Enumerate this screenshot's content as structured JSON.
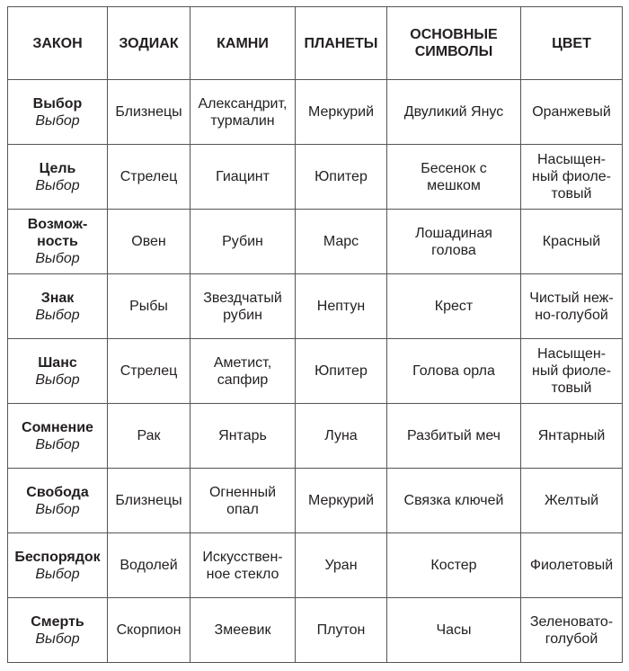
{
  "headers": [
    "ЗАКОН",
    "ЗОДИАК",
    "КАМНИ",
    "ПЛАНЕТЫ",
    "ОСНОВНЫЕ\nСИМВОЛЫ",
    "ЦВЕТ"
  ],
  "rows": [
    {
      "law": "Выбор",
      "sub": "Выбор",
      "cells": [
        "Близнецы",
        "Александрит,\nтурмалин",
        "Меркурий",
        "Двуликий Янус",
        "Оранжевый"
      ]
    },
    {
      "law": "Цель",
      "sub": "Выбор",
      "cells": [
        "Стрелец",
        "Гиацинт",
        "Юпитер",
        "Бесенок с\nмешком",
        "Насыщен-\nный фиоле-\nтовый"
      ]
    },
    {
      "law": "Возмож-\nность",
      "sub": "Выбор",
      "cells": [
        "Овен",
        "Рубин",
        "Марс",
        "Лошадиная\nголова",
        "Красный"
      ]
    },
    {
      "law": "Знак",
      "sub": "Выбор",
      "cells": [
        "Рыбы",
        "Звездчатый\nрубин",
        "Нептун",
        "Крест",
        "Чистый неж-\nно-голубой"
      ]
    },
    {
      "law": "Шанс",
      "sub": "Выбор",
      "cells": [
        "Стрелец",
        "Аметист,\nсапфир",
        "Юпитер",
        "Голова орла",
        "Насыщен-\nный фиоле-\nтовый"
      ]
    },
    {
      "law": "Сомнение",
      "sub": "Выбор",
      "cells": [
        "Рак",
        "Янтарь",
        "Луна",
        "Разбитый меч",
        "Янтарный"
      ]
    },
    {
      "law": "Свобода",
      "sub": "Выбор",
      "cells": [
        "Близнецы",
        "Огненный\nопал",
        "Меркурий",
        "Связка ключей",
        "Желтый"
      ]
    },
    {
      "law": "Беспорядок",
      "sub": "Выбор",
      "cells": [
        "Водолей",
        "Искусствен-\nное стекло",
        "Уран",
        "Костер",
        "Фиолетовый"
      ]
    },
    {
      "law": "Смерть",
      "sub": "Выбор",
      "cells": [
        "Скорпион",
        "Змеевик",
        "Плутон",
        "Часы",
        "Зеленовато-\nголубой"
      ]
    }
  ]
}
